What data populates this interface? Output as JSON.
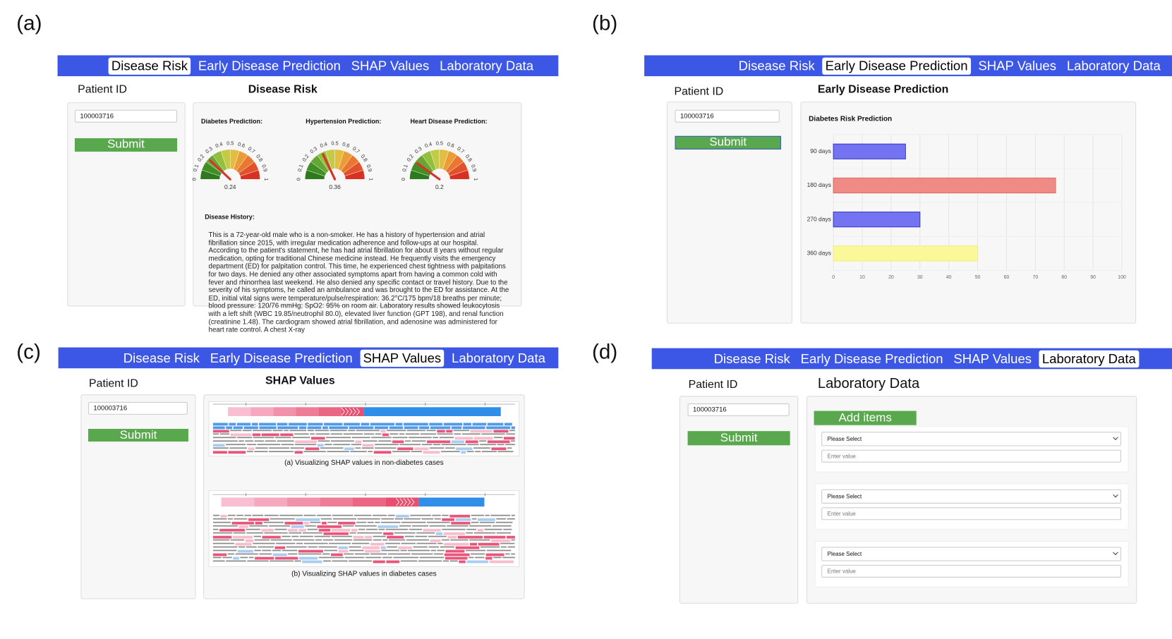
{
  "tabs": [
    "Disease Risk",
    "Early Disease Prediction",
    "SHAP Values",
    "Laboratory Data"
  ],
  "patient_id_label": "Patient ID",
  "patient_id": "100003716",
  "submit": "Submit",
  "panels": [
    {
      "label": "(a)",
      "active_tab": 0,
      "title": "Disease Risk",
      "gauges": [
        {
          "title": "Diabetes Prediction:",
          "value": 0.24
        },
        {
          "title": "Hypertension Prediction:",
          "value": 0.36
        },
        {
          "title": "Heart Disease Prediction:",
          "value": 0.2
        }
      ],
      "gauge_ticks": [
        0,
        0.1,
        0.2,
        0.3,
        0.4,
        0.5,
        0.6,
        0.7,
        0.8,
        0.9,
        1
      ],
      "history_title": "Disease History:",
      "history_text": "This is a 72-year-old male who is a non-smoker. He has a history of hypertension and atrial fibrillation since 2015, with irregular medication adherence and follow-ups at our hospital. According to the patient's statement, he has had atrial fibrillation for about 8 years without regular medication, opting for traditional Chinese medicine instead. He frequently visits the emergency department (ED) for palpitation control. This time, he experienced chest tightness with palpitations for two days. He denied any other associated symptoms apart from having a common cold with fever and rhinorrhea last weekend. He also denied any specific contact or travel history. Due to the severity of his symptoms, he called an ambulance and was brought to the ED for assistance. At the ED, initial vital signs were temperature/pulse/respiration: 36.2°C/175 bpm/18 breaths per minute; blood pressure: 120/76 mmHg; SpO2: 95% on room air. Laboratory results showed leukocytosis with a left shift (WBC 19.85/neutrophil 80.0), elevated liver function (GPT 198), and renal function (creatinine 1.48). The cardiogram showed atrial fibrillation, and adenosine was administered for heart rate control. A chest X-ray"
    },
    {
      "label": "(b)",
      "active_tab": 1,
      "title": "Early Disease Prediction"
    },
    {
      "label": "(c)",
      "active_tab": 2,
      "title": "SHAP Values",
      "captions": [
        "(a) Visualizing SHAP values in non-diabetes cases",
        "(b) Visualizing SHAP values in diabetes cases"
      ]
    },
    {
      "label": "(d)",
      "active_tab": 3,
      "title": "Laboratory Data",
      "add_button": "Add items",
      "items": [
        {
          "select": "Please Select",
          "value": "Enter value"
        },
        {
          "select": "Please Select",
          "value": "Enter value"
        },
        {
          "select": "Please Select",
          "value": "Enter value"
        }
      ]
    }
  ],
  "chart_data": {
    "type": "bar",
    "orientation": "horizontal",
    "title": "Diabetes Risk Prediction",
    "categories": [
      "90 days",
      "180 days",
      "270 days",
      "360 days"
    ],
    "values": [
      25,
      77,
      30,
      50
    ],
    "colors": [
      "#7474f2",
      "#f08a84",
      "#7474f2",
      "#fbf89a"
    ],
    "xlim": [
      0,
      100
    ],
    "xticks": [
      0,
      10,
      20,
      30,
      40,
      50,
      60,
      70,
      80,
      90,
      100
    ],
    "grid": true
  }
}
